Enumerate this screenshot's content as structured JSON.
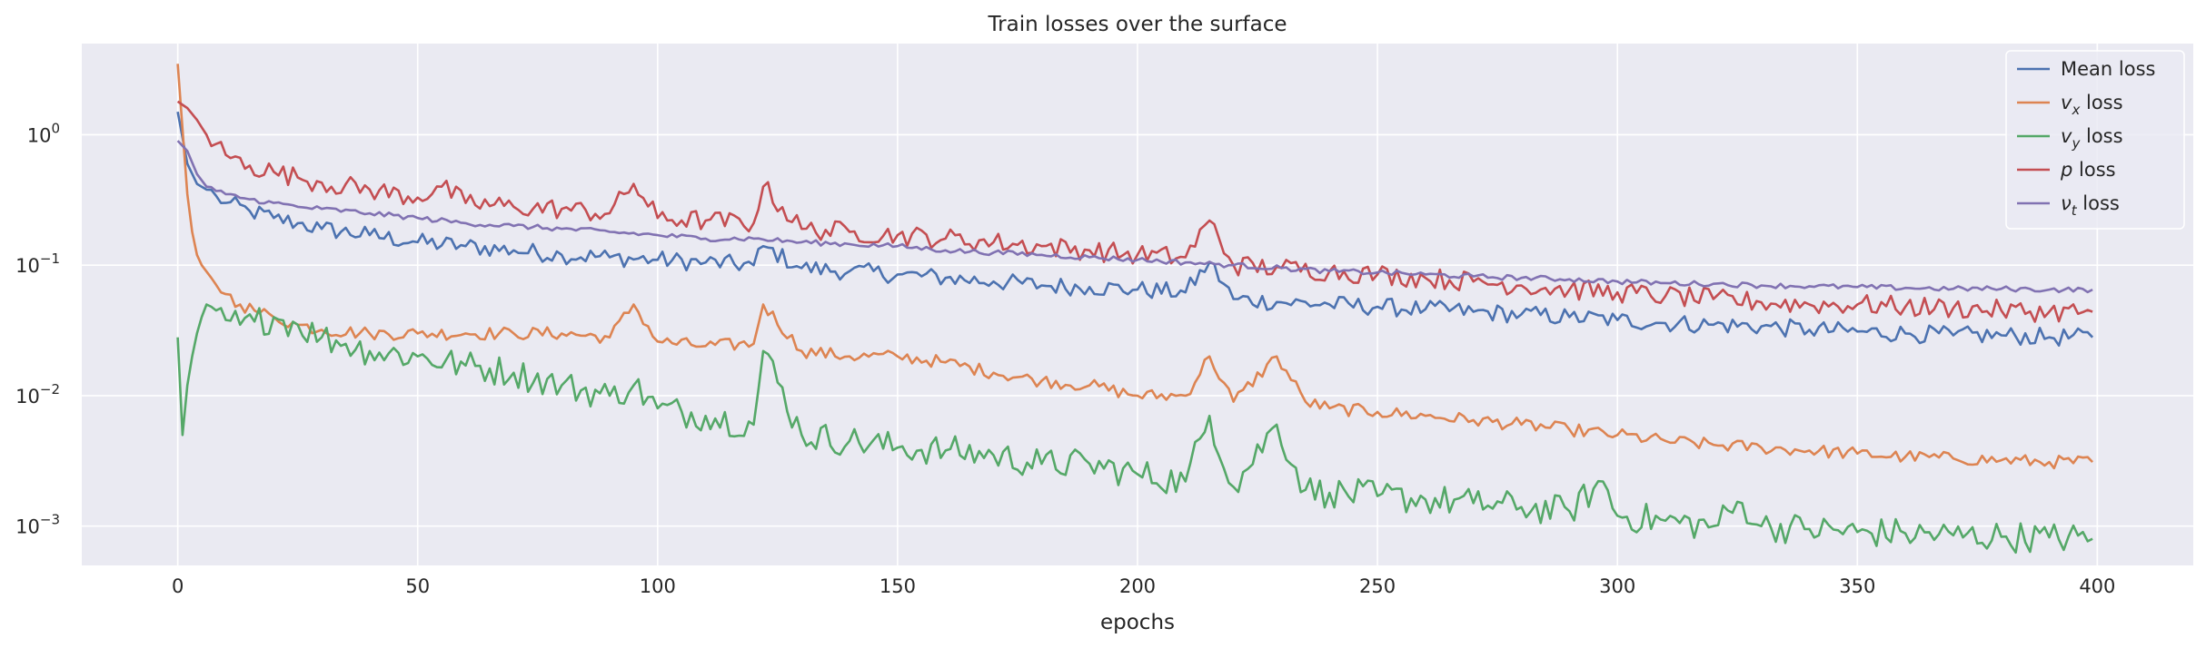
{
  "chart_data": {
    "type": "line",
    "title": "Train losses over the surface",
    "xlabel": "epochs",
    "ylabel": "",
    "yscale": "log",
    "xlim": [
      -20,
      420
    ],
    "ylim": [
      0.0005,
      5
    ],
    "grid": true,
    "legend_position": "top-right",
    "x_ticks": [
      {
        "value": 0,
        "label": "0"
      },
      {
        "value": 50,
        "label": "50"
      },
      {
        "value": 100,
        "label": "100"
      },
      {
        "value": 150,
        "label": "150"
      },
      {
        "value": 200,
        "label": "200"
      },
      {
        "value": 250,
        "label": "250"
      },
      {
        "value": 300,
        "label": "300"
      },
      {
        "value": 350,
        "label": "350"
      },
      {
        "value": 400,
        "label": "400"
      }
    ],
    "y_ticks": [
      {
        "value": 1,
        "base": "10",
        "exp": "0"
      },
      {
        "value": 0.1,
        "base": "10",
        "exp": "−1"
      },
      {
        "value": 0.01,
        "base": "10",
        "exp": "−2"
      },
      {
        "value": 0.001,
        "base": "10",
        "exp": "−3"
      }
    ],
    "series": [
      {
        "name": "Mean loss",
        "symbol": "",
        "suffix": "Mean loss",
        "color": "#4c72b0",
        "x": [
          0,
          2,
          4,
          6,
          8,
          10,
          15,
          20,
          25,
          30,
          40,
          50,
          60,
          70,
          80,
          90,
          100,
          110,
          120,
          122,
          130,
          140,
          150,
          160,
          170,
          180,
          190,
          200,
          210,
          215,
          220,
          230,
          240,
          250,
          260,
          270,
          280,
          290,
          300,
          310,
          320,
          330,
          340,
          350,
          360,
          370,
          380,
          390,
          399
        ],
        "y": [
          1.5,
          0.6,
          0.42,
          0.38,
          0.34,
          0.3,
          0.26,
          0.23,
          0.21,
          0.19,
          0.17,
          0.15,
          0.14,
          0.13,
          0.12,
          0.115,
          0.11,
          0.105,
          0.1,
          0.14,
          0.095,
          0.09,
          0.085,
          0.08,
          0.075,
          0.07,
          0.068,
          0.065,
          0.062,
          0.105,
          0.055,
          0.052,
          0.05,
          0.048,
          0.046,
          0.044,
          0.042,
          0.04,
          0.038,
          0.036,
          0.035,
          0.034,
          0.032,
          0.031,
          0.03,
          0.029,
          0.029,
          0.028,
          0.028
        ]
      },
      {
        "name": "v_x loss",
        "symbol": "v",
        "sub": "x",
        "suffix": " loss",
        "color": "#dd8452",
        "x": [
          0,
          1,
          2,
          3,
          4,
          5,
          7,
          10,
          13,
          16,
          20,
          25,
          30,
          40,
          50,
          60,
          70,
          80,
          90,
          95,
          100,
          110,
          120,
          122,
          130,
          140,
          150,
          160,
          170,
          180,
          190,
          200,
          210,
          215,
          220,
          229,
          235,
          240,
          250,
          260,
          270,
          280,
          290,
          300,
          310,
          320,
          330,
          340,
          350,
          360,
          370,
          380,
          390,
          399
        ],
        "y": [
          3.5,
          1.1,
          0.35,
          0.18,
          0.12,
          0.1,
          0.08,
          0.06,
          0.05,
          0.045,
          0.04,
          0.035,
          0.032,
          0.03,
          0.03,
          0.03,
          0.03,
          0.03,
          0.028,
          0.05,
          0.026,
          0.024,
          0.025,
          0.05,
          0.022,
          0.02,
          0.02,
          0.018,
          0.015,
          0.013,
          0.012,
          0.01,
          0.01,
          0.02,
          0.009,
          0.02,
          0.009,
          0.008,
          0.0075,
          0.007,
          0.0065,
          0.006,
          0.0055,
          0.005,
          0.0045,
          0.0042,
          0.004,
          0.0038,
          0.0036,
          0.0034,
          0.0033,
          0.0032,
          0.0031,
          0.0031
        ]
      },
      {
        "name": "v_y loss",
        "symbol": "v",
        "sub": "y",
        "suffix": " loss",
        "color": "#55a868",
        "x": [
          0,
          1,
          2,
          3,
          4,
          5,
          6,
          7,
          8,
          10,
          13,
          16,
          20,
          25,
          30,
          35,
          40,
          50,
          60,
          70,
          80,
          90,
          95,
          100,
          110,
          120,
          122,
          130,
          140,
          150,
          160,
          170,
          180,
          190,
          200,
          210,
          215,
          220,
          229,
          235,
          240,
          250,
          260,
          270,
          280,
          290,
          297,
          300,
          310,
          320,
          326,
          330,
          340,
          350,
          360,
          370,
          380,
          390,
          399
        ],
        "y": [
          0.028,
          0.005,
          0.012,
          0.02,
          0.03,
          0.04,
          0.05,
          0.048,
          0.045,
          0.038,
          0.035,
          0.037,
          0.04,
          0.035,
          0.028,
          0.025,
          0.022,
          0.02,
          0.017,
          0.015,
          0.012,
          0.01,
          0.012,
          0.008,
          0.007,
          0.006,
          0.022,
          0.005,
          0.0045,
          0.004,
          0.0038,
          0.0035,
          0.003,
          0.003,
          0.0025,
          0.0022,
          0.007,
          0.002,
          0.006,
          0.0019,
          0.0018,
          0.0017,
          0.0016,
          0.0015,
          0.0014,
          0.0013,
          0.0022,
          0.0012,
          0.0011,
          0.001,
          0.0015,
          0.001,
          0.00095,
          0.0009,
          0.00088,
          0.00085,
          0.00083,
          0.00082,
          0.0008
        ]
      },
      {
        "name": "p loss",
        "symbol": "p",
        "suffix": " loss",
        "color": "#c44e52",
        "x": [
          0,
          2,
          4,
          6,
          8,
          10,
          15,
          20,
          25,
          30,
          40,
          50,
          55,
          60,
          70,
          80,
          90,
          95,
          100,
          110,
          120,
          122,
          130,
          140,
          150,
          160,
          170,
          180,
          190,
          200,
          210,
          215,
          220,
          230,
          240,
          250,
          260,
          270,
          280,
          290,
          300,
          310,
          320,
          330,
          340,
          350,
          360,
          370,
          380,
          390,
          399
        ],
        "y": [
          1.8,
          1.6,
          1.3,
          1.0,
          0.85,
          0.7,
          0.58,
          0.52,
          0.47,
          0.43,
          0.38,
          0.33,
          0.4,
          0.3,
          0.28,
          0.27,
          0.25,
          0.42,
          0.23,
          0.22,
          0.21,
          0.4,
          0.19,
          0.18,
          0.17,
          0.16,
          0.15,
          0.14,
          0.13,
          0.12,
          0.115,
          0.22,
          0.1,
          0.095,
          0.09,
          0.085,
          0.08,
          0.075,
          0.07,
          0.065,
          0.062,
          0.058,
          0.055,
          0.052,
          0.05,
          0.05,
          0.048,
          0.047,
          0.045,
          0.044,
          0.044
        ]
      },
      {
        "name": "ν_t loss",
        "symbol": "ν",
        "sub": "t",
        "suffix": " loss",
        "color": "#8172b2",
        "x": [
          0,
          2,
          4,
          6,
          8,
          10,
          15,
          20,
          25,
          30,
          40,
          50,
          60,
          70,
          80,
          90,
          100,
          110,
          120,
          130,
          140,
          150,
          160,
          170,
          180,
          190,
          200,
          210,
          220,
          230,
          240,
          250,
          260,
          270,
          280,
          290,
          300,
          310,
          320,
          330,
          340,
          350,
          360,
          370,
          380,
          390,
          399
        ],
        "y": [
          0.9,
          0.75,
          0.5,
          0.4,
          0.37,
          0.35,
          0.32,
          0.3,
          0.28,
          0.27,
          0.25,
          0.23,
          0.21,
          0.2,
          0.19,
          0.18,
          0.17,
          0.16,
          0.16,
          0.15,
          0.145,
          0.14,
          0.13,
          0.125,
          0.12,
          0.115,
          0.11,
          0.105,
          0.1,
          0.095,
          0.09,
          0.088,
          0.085,
          0.082,
          0.08,
          0.078,
          0.075,
          0.073,
          0.072,
          0.07,
          0.069,
          0.068,
          0.067,
          0.066,
          0.066,
          0.065,
          0.065
        ]
      }
    ]
  }
}
